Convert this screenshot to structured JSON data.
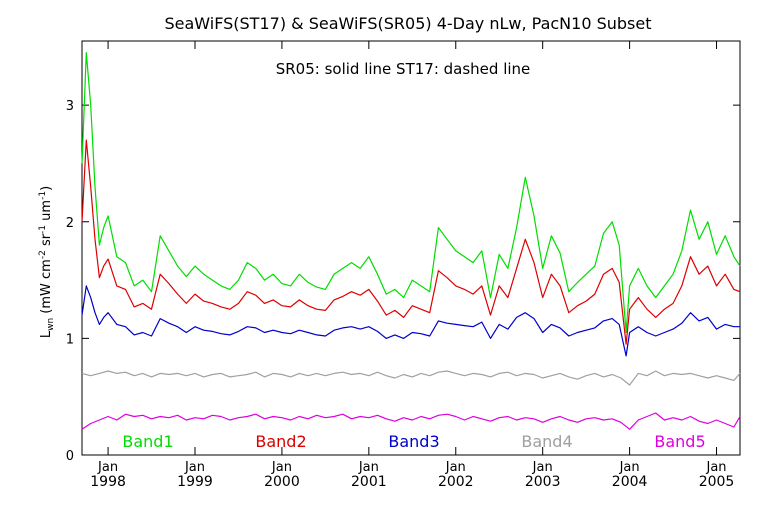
{
  "chart_data": {
    "type": "line",
    "title": "SeaWiFS(ST17) & SeaWiFS(SR05) 4-Day nLw, PacN10 Subset",
    "annotation": "SR05: solid line   ST17: dashed line",
    "ylabel": {
      "main": "L",
      "sub": "wn",
      "rest": " (mW cm",
      "sup1": "-2",
      "mid1": " sr",
      "sup2": "-1",
      "mid2": " um",
      "sup3": "-1",
      "end": ")"
    },
    "xlim": [
      1997.7,
      2005.27
    ],
    "ylim": [
      0,
      3.55
    ],
    "yticks": [
      {
        "value": 0,
        "label": "0"
      },
      {
        "value": 1,
        "label": "1"
      },
      {
        "value": 2,
        "label": "2"
      },
      {
        "value": 3,
        "label": "3"
      }
    ],
    "xticks": [
      {
        "value": 1998.0,
        "month": "Jan",
        "year": "1998"
      },
      {
        "value": 1999.0,
        "month": "Jan",
        "year": "1999"
      },
      {
        "value": 2000.0,
        "month": "Jan",
        "year": "2000"
      },
      {
        "value": 2001.0,
        "month": "Jan",
        "year": "2001"
      },
      {
        "value": 2002.0,
        "month": "Jan",
        "year": "2002"
      },
      {
        "value": 2003.0,
        "month": "Jan",
        "year": "2003"
      },
      {
        "value": 2004.0,
        "month": "Jan",
        "year": "2004"
      },
      {
        "value": 2005.0,
        "month": "Jan",
        "year": "2005"
      }
    ],
    "legend_placement": "bottom",
    "series": [
      {
        "name": "Band1",
        "color": "#00dd00",
        "x": [
          1997.7,
          1997.75,
          1997.8,
          1997.85,
          1997.9,
          1997.95,
          1998.0,
          1998.1,
          1998.2,
          1998.3,
          1998.4,
          1998.5,
          1998.6,
          1998.7,
          1998.8,
          1998.9,
          1999.0,
          1999.1,
          1999.2,
          1999.3,
          1999.4,
          1999.5,
          1999.6,
          1999.7,
          1999.8,
          1999.9,
          2000.0,
          2000.1,
          2000.2,
          2000.3,
          2000.4,
          2000.5,
          2000.6,
          2000.7,
          2000.8,
          2000.9,
          2001.0,
          2001.1,
          2001.2,
          2001.3,
          2001.4,
          2001.5,
          2001.6,
          2001.7,
          2001.8,
          2001.9,
          2002.0,
          2002.1,
          2002.2,
          2002.3,
          2002.4,
          2002.5,
          2002.6,
          2002.7,
          2002.8,
          2002.9,
          2003.0,
          2003.1,
          2003.2,
          2003.3,
          2003.4,
          2003.5,
          2003.6,
          2003.7,
          2003.8,
          2003.88,
          2003.96,
          2004.0,
          2004.1,
          2004.2,
          2004.3,
          2004.4,
          2004.5,
          2004.6,
          2004.7,
          2004.8,
          2004.9,
          2005.0,
          2005.1,
          2005.2,
          2005.27
        ],
        "values": [
          2.5,
          3.45,
          3.0,
          2.3,
          1.8,
          1.95,
          2.05,
          1.7,
          1.65,
          1.45,
          1.5,
          1.4,
          1.88,
          1.75,
          1.62,
          1.53,
          1.62,
          1.55,
          1.5,
          1.45,
          1.42,
          1.5,
          1.65,
          1.6,
          1.5,
          1.55,
          1.47,
          1.45,
          1.55,
          1.48,
          1.44,
          1.42,
          1.55,
          1.6,
          1.65,
          1.6,
          1.7,
          1.55,
          1.38,
          1.42,
          1.35,
          1.5,
          1.45,
          1.4,
          1.95,
          1.85,
          1.75,
          1.7,
          1.65,
          1.75,
          1.35,
          1.72,
          1.6,
          1.95,
          2.38,
          2.05,
          1.6,
          1.88,
          1.73,
          1.4,
          1.48,
          1.55,
          1.62,
          1.9,
          2.0,
          1.8,
          1.05,
          1.45,
          1.6,
          1.45,
          1.35,
          1.45,
          1.55,
          1.75,
          2.1,
          1.85,
          2.0,
          1.72,
          1.88,
          1.7,
          1.62
        ]
      },
      {
        "name": "Band2",
        "color": "#dd0000",
        "x": [
          1997.7,
          1997.75,
          1997.8,
          1997.85,
          1997.9,
          1997.95,
          1998.0,
          1998.1,
          1998.2,
          1998.3,
          1998.4,
          1998.5,
          1998.6,
          1998.7,
          1998.8,
          1998.9,
          1999.0,
          1999.1,
          1999.2,
          1999.3,
          1999.4,
          1999.5,
          1999.6,
          1999.7,
          1999.8,
          1999.9,
          2000.0,
          2000.1,
          2000.2,
          2000.3,
          2000.4,
          2000.5,
          2000.6,
          2000.7,
          2000.8,
          2000.9,
          2001.0,
          2001.1,
          2001.2,
          2001.3,
          2001.4,
          2001.5,
          2001.6,
          2001.7,
          2001.8,
          2001.9,
          2002.0,
          2002.1,
          2002.2,
          2002.3,
          2002.4,
          2002.5,
          2002.6,
          2002.7,
          2002.8,
          2002.9,
          2003.0,
          2003.1,
          2003.2,
          2003.3,
          2003.4,
          2003.5,
          2003.6,
          2003.7,
          2003.8,
          2003.88,
          2003.96,
          2004.0,
          2004.1,
          2004.2,
          2004.3,
          2004.4,
          2004.5,
          2004.6,
          2004.7,
          2004.8,
          2004.9,
          2005.0,
          2005.1,
          2005.2,
          2005.27
        ],
        "values": [
          2.0,
          2.7,
          2.3,
          1.85,
          1.52,
          1.62,
          1.68,
          1.45,
          1.42,
          1.27,
          1.3,
          1.25,
          1.55,
          1.47,
          1.38,
          1.3,
          1.38,
          1.32,
          1.3,
          1.27,
          1.25,
          1.3,
          1.4,
          1.37,
          1.3,
          1.33,
          1.28,
          1.27,
          1.33,
          1.28,
          1.25,
          1.24,
          1.33,
          1.36,
          1.4,
          1.37,
          1.42,
          1.32,
          1.2,
          1.24,
          1.18,
          1.28,
          1.25,
          1.22,
          1.58,
          1.52,
          1.45,
          1.42,
          1.38,
          1.45,
          1.2,
          1.45,
          1.35,
          1.6,
          1.85,
          1.65,
          1.35,
          1.55,
          1.45,
          1.22,
          1.28,
          1.32,
          1.38,
          1.55,
          1.6,
          1.48,
          0.95,
          1.25,
          1.35,
          1.25,
          1.18,
          1.25,
          1.3,
          1.45,
          1.7,
          1.55,
          1.62,
          1.45,
          1.55,
          1.42,
          1.4
        ]
      },
      {
        "name": "Band3",
        "color": "#0000cc",
        "x": [
          1997.7,
          1997.75,
          1997.8,
          1997.85,
          1997.9,
          1997.95,
          1998.0,
          1998.1,
          1998.2,
          1998.3,
          1998.4,
          1998.5,
          1998.6,
          1998.7,
          1998.8,
          1998.9,
          1999.0,
          1999.1,
          1999.2,
          1999.3,
          1999.4,
          1999.5,
          1999.6,
          1999.7,
          1999.8,
          1999.9,
          2000.0,
          2000.1,
          2000.2,
          2000.3,
          2000.4,
          2000.5,
          2000.6,
          2000.7,
          2000.8,
          2000.9,
          2001.0,
          2001.1,
          2001.2,
          2001.3,
          2001.4,
          2001.5,
          2001.6,
          2001.7,
          2001.8,
          2001.9,
          2002.0,
          2002.1,
          2002.2,
          2002.3,
          2002.4,
          2002.5,
          2002.6,
          2002.7,
          2002.8,
          2002.9,
          2003.0,
          2003.1,
          2003.2,
          2003.3,
          2003.4,
          2003.5,
          2003.6,
          2003.7,
          2003.8,
          2003.88,
          2003.96,
          2004.0,
          2004.1,
          2004.2,
          2004.3,
          2004.4,
          2004.5,
          2004.6,
          2004.7,
          2004.8,
          2004.9,
          2005.0,
          2005.1,
          2005.2,
          2005.27
        ],
        "values": [
          1.2,
          1.45,
          1.35,
          1.22,
          1.12,
          1.18,
          1.22,
          1.12,
          1.1,
          1.03,
          1.05,
          1.02,
          1.17,
          1.13,
          1.1,
          1.05,
          1.1,
          1.07,
          1.06,
          1.04,
          1.03,
          1.06,
          1.1,
          1.09,
          1.05,
          1.07,
          1.05,
          1.04,
          1.07,
          1.05,
          1.03,
          1.02,
          1.07,
          1.09,
          1.1,
          1.08,
          1.1,
          1.06,
          1.0,
          1.03,
          1.0,
          1.05,
          1.04,
          1.02,
          1.15,
          1.13,
          1.12,
          1.11,
          1.1,
          1.14,
          1.0,
          1.12,
          1.08,
          1.18,
          1.22,
          1.17,
          1.05,
          1.12,
          1.09,
          1.02,
          1.05,
          1.07,
          1.09,
          1.15,
          1.17,
          1.12,
          0.85,
          1.05,
          1.1,
          1.05,
          1.02,
          1.05,
          1.08,
          1.13,
          1.22,
          1.15,
          1.18,
          1.08,
          1.12,
          1.1,
          1.1
        ]
      },
      {
        "name": "Band4",
        "color": "#a0a0a0",
        "x": [
          1997.7,
          1997.8,
          1997.9,
          1998.0,
          1998.1,
          1998.2,
          1998.3,
          1998.4,
          1998.5,
          1998.6,
          1998.7,
          1998.8,
          1998.9,
          1999.0,
          1999.1,
          1999.2,
          1999.3,
          1999.4,
          1999.5,
          1999.6,
          1999.7,
          1999.8,
          1999.9,
          2000.0,
          2000.1,
          2000.2,
          2000.3,
          2000.4,
          2000.5,
          2000.6,
          2000.7,
          2000.8,
          2000.9,
          2001.0,
          2001.1,
          2001.2,
          2001.3,
          2001.4,
          2001.5,
          2001.6,
          2001.7,
          2001.8,
          2001.9,
          2002.0,
          2002.1,
          2002.2,
          2002.3,
          2002.4,
          2002.5,
          2002.6,
          2002.7,
          2002.8,
          2002.9,
          2003.0,
          2003.1,
          2003.2,
          2003.3,
          2003.4,
          2003.5,
          2003.6,
          2003.7,
          2003.8,
          2003.9,
          2004.0,
          2004.1,
          2004.2,
          2004.3,
          2004.4,
          2004.5,
          2004.6,
          2004.7,
          2004.8,
          2004.9,
          2005.0,
          2005.1,
          2005.2,
          2005.27
        ],
        "values": [
          0.7,
          0.68,
          0.7,
          0.72,
          0.7,
          0.71,
          0.68,
          0.7,
          0.67,
          0.7,
          0.69,
          0.7,
          0.68,
          0.7,
          0.67,
          0.69,
          0.7,
          0.67,
          0.68,
          0.69,
          0.71,
          0.67,
          0.7,
          0.69,
          0.67,
          0.7,
          0.68,
          0.7,
          0.68,
          0.7,
          0.71,
          0.69,
          0.7,
          0.68,
          0.71,
          0.68,
          0.66,
          0.69,
          0.67,
          0.7,
          0.68,
          0.71,
          0.72,
          0.7,
          0.68,
          0.7,
          0.69,
          0.67,
          0.7,
          0.71,
          0.68,
          0.7,
          0.69,
          0.66,
          0.68,
          0.7,
          0.67,
          0.65,
          0.68,
          0.7,
          0.67,
          0.69,
          0.66,
          0.6,
          0.7,
          0.68,
          0.72,
          0.68,
          0.7,
          0.69,
          0.7,
          0.68,
          0.66,
          0.68,
          0.66,
          0.64,
          0.7
        ]
      },
      {
        "name": "Band5",
        "color": "#dd00dd",
        "x": [
          1997.7,
          1997.8,
          1997.9,
          1998.0,
          1998.1,
          1998.2,
          1998.3,
          1998.4,
          1998.5,
          1998.6,
          1998.7,
          1998.8,
          1998.9,
          1999.0,
          1999.1,
          1999.2,
          1999.3,
          1999.4,
          1999.5,
          1999.6,
          1999.7,
          1999.8,
          1999.9,
          2000.0,
          2000.1,
          2000.2,
          2000.3,
          2000.4,
          2000.5,
          2000.6,
          2000.7,
          2000.8,
          2000.9,
          2001.0,
          2001.1,
          2001.2,
          2001.3,
          2001.4,
          2001.5,
          2001.6,
          2001.7,
          2001.8,
          2001.9,
          2002.0,
          2002.1,
          2002.2,
          2002.3,
          2002.4,
          2002.5,
          2002.6,
          2002.7,
          2002.8,
          2002.9,
          2003.0,
          2003.1,
          2003.2,
          2003.3,
          2003.4,
          2003.5,
          2003.6,
          2003.7,
          2003.8,
          2003.9,
          2004.0,
          2004.1,
          2004.2,
          2004.3,
          2004.4,
          2004.5,
          2004.6,
          2004.7,
          2004.8,
          2004.9,
          2005.0,
          2005.1,
          2005.2,
          2005.27
        ],
        "values": [
          0.22,
          0.27,
          0.3,
          0.33,
          0.3,
          0.35,
          0.33,
          0.34,
          0.31,
          0.33,
          0.32,
          0.34,
          0.3,
          0.32,
          0.31,
          0.34,
          0.33,
          0.3,
          0.32,
          0.33,
          0.35,
          0.31,
          0.33,
          0.32,
          0.3,
          0.33,
          0.31,
          0.34,
          0.32,
          0.33,
          0.35,
          0.31,
          0.33,
          0.32,
          0.34,
          0.31,
          0.29,
          0.32,
          0.3,
          0.33,
          0.31,
          0.34,
          0.35,
          0.33,
          0.3,
          0.33,
          0.31,
          0.29,
          0.32,
          0.33,
          0.3,
          0.32,
          0.31,
          0.28,
          0.31,
          0.33,
          0.3,
          0.28,
          0.31,
          0.32,
          0.3,
          0.31,
          0.28,
          0.22,
          0.3,
          0.33,
          0.36,
          0.3,
          0.32,
          0.3,
          0.33,
          0.29,
          0.27,
          0.3,
          0.27,
          0.24,
          0.33
        ]
      }
    ]
  }
}
